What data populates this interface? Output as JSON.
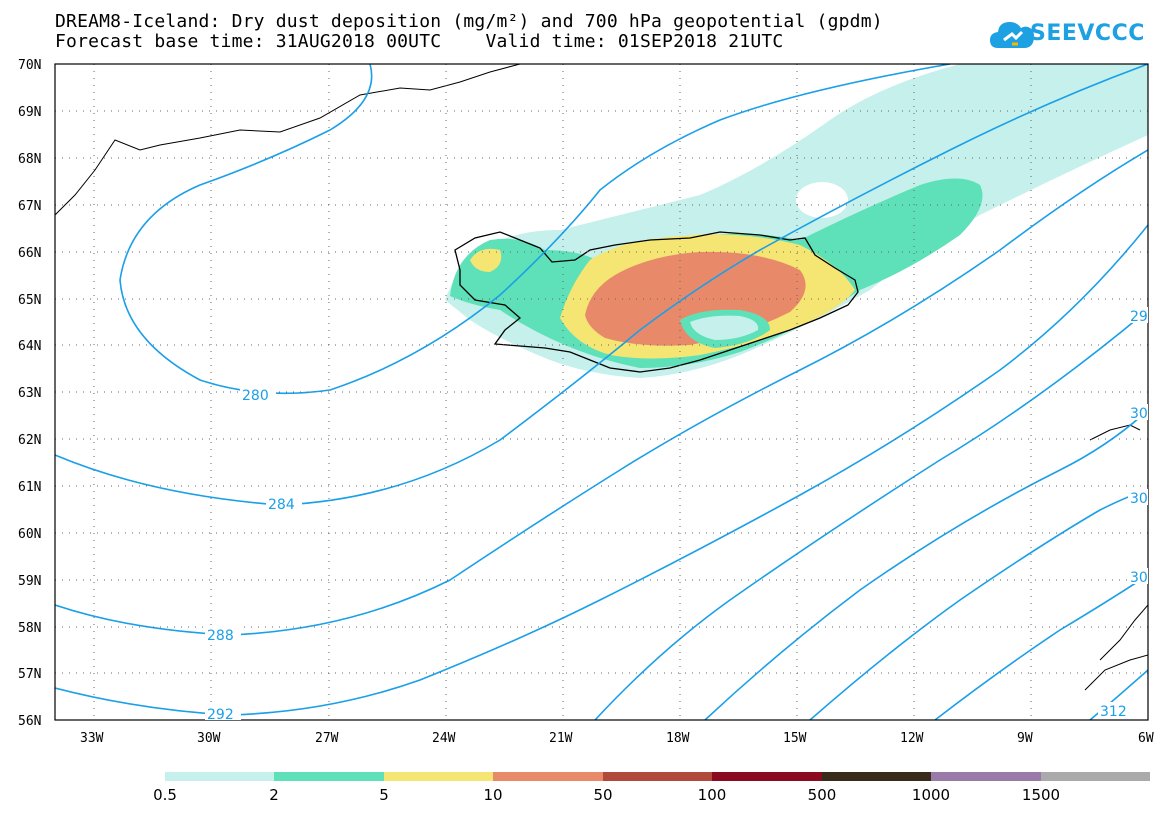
{
  "header": {
    "title_line1": "DREAM8-Iceland: Dry dust deposition (mg/m²) and 700 hPa geopotential (gpdm)",
    "title_line2": "Forecast base time: 31AUG2018 00UTC    Valid time: 01SEP2018 21UTC"
  },
  "logo": {
    "text": "SEEVCCC",
    "color": "#1da1e2",
    "icon": "cloud-icon"
  },
  "map": {
    "lat_labels": [
      "70N",
      "69N",
      "68N",
      "67N",
      "66N",
      "65N",
      "64N",
      "63N",
      "62N",
      "61N",
      "60N",
      "59N",
      "58N",
      "57N",
      "56N"
    ],
    "lon_labels": [
      "33W",
      "30W",
      "27W",
      "24W",
      "21W",
      "18W",
      "15W",
      "12W",
      "9W",
      "6W"
    ],
    "contour_labels": [
      "280",
      "284",
      "288",
      "292",
      "29",
      "30",
      "30",
      "30",
      "312"
    ],
    "contour_color": "#1a9fe8"
  },
  "colorbar": {
    "colors": [
      "#c5f0ec",
      "#5ee0b8",
      "#f5e673",
      "#e88a6a",
      "#b04a3a",
      "#8a0a20",
      "#3a2a1a",
      "#9a7aa8",
      "#aaaaaa"
    ],
    "labels": [
      "0.5",
      "2",
      "5",
      "10",
      "50",
      "100",
      "500",
      "1000",
      "1500"
    ]
  }
}
